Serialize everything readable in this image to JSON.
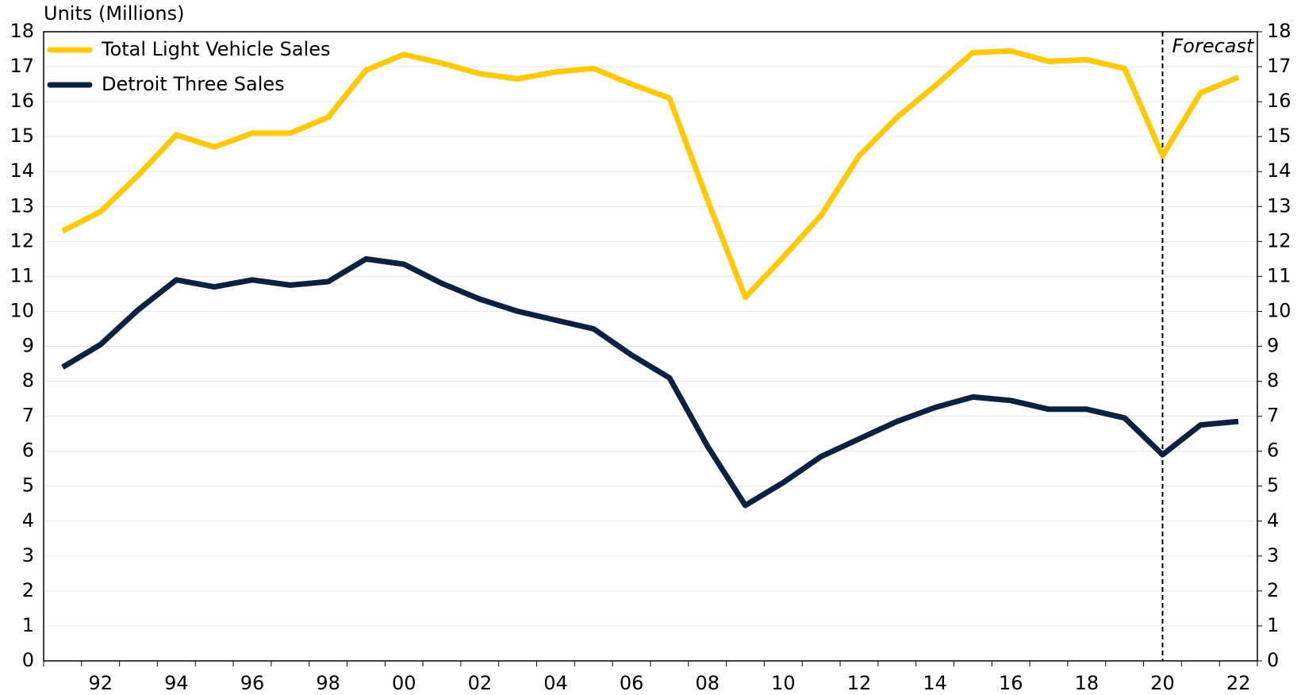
{
  "chart_data": {
    "type": "line",
    "y_label": "Units (Millions)",
    "categories": [
      null,
      "92",
      null,
      "94",
      null,
      "96",
      null,
      "98",
      null,
      "00",
      null,
      "02",
      null,
      "04",
      null,
      "06",
      null,
      "08",
      null,
      "10",
      null,
      "12",
      null,
      "14",
      null,
      "16",
      null,
      "18",
      null,
      "20",
      null,
      "22"
    ],
    "series": [
      {
        "name": "Total Light Vehicle Sales",
        "color": "#ffc907",
        "values": [
          12.3,
          12.85,
          13.9,
          15.05,
          14.7,
          15.1,
          15.1,
          15.55,
          16.9,
          17.35,
          17.1,
          16.8,
          16.65,
          16.85,
          16.95,
          16.5,
          16.1,
          13.2,
          10.4,
          11.55,
          12.75,
          14.45,
          15.55,
          16.45,
          17.4,
          17.45,
          17.15,
          17.2,
          16.95,
          14.45,
          16.25,
          16.7
        ]
      },
      {
        "name": "Detroit Three Sales",
        "color": "#0a2240",
        "values": [
          8.4,
          9.05,
          10.05,
          10.9,
          10.7,
          10.9,
          10.75,
          10.85,
          11.5,
          11.35,
          10.8,
          10.35,
          10.0,
          9.75,
          9.5,
          8.75,
          8.1,
          6.15,
          4.45,
          5.1,
          5.85,
          6.35,
          6.85,
          7.25,
          7.55,
          7.45,
          7.2,
          7.2,
          6.95,
          5.9,
          6.75,
          6.85
        ]
      }
    ],
    "annotations": [
      {
        "text": "Forecast",
        "at": "20"
      }
    ],
    "ylim": [
      0,
      18
    ],
    "yticks": [
      0,
      1,
      2,
      3,
      4,
      5,
      6,
      7,
      8,
      9,
      10,
      11,
      12,
      13,
      14,
      15,
      16,
      17,
      18
    ],
    "y2lim": [
      0,
      18
    ],
    "y2ticks": [
      0,
      1,
      2,
      3,
      4,
      5,
      6,
      7,
      8,
      9,
      10,
      11,
      12,
      13,
      14,
      15,
      16,
      17,
      18
    ],
    "grid": true,
    "legend": "upper left"
  }
}
